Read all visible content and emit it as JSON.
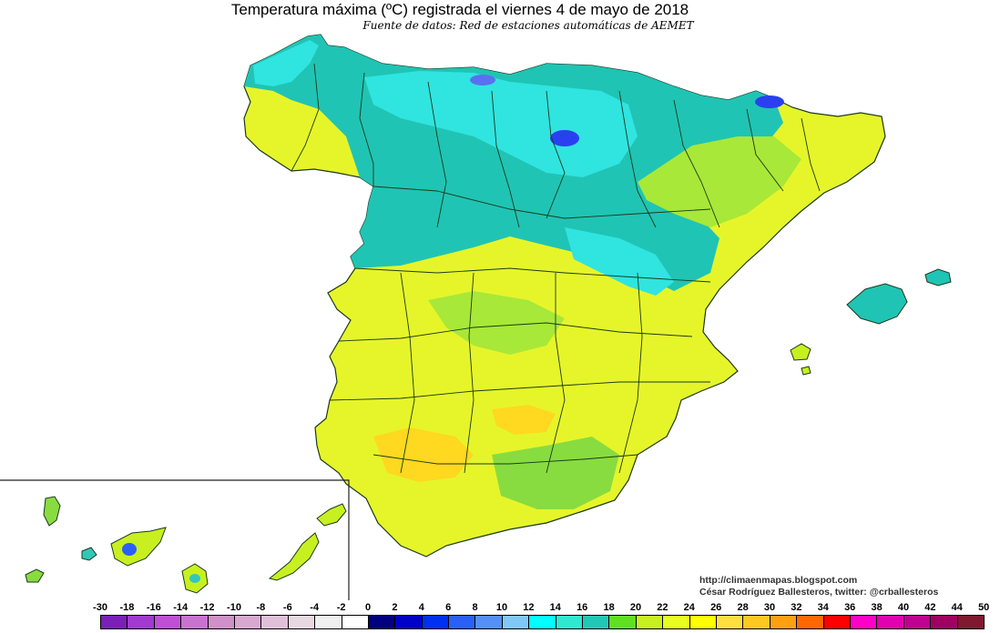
{
  "title": "Temperatura máxima (ºC) registrada el viernes 4 de mayo de 2018",
  "subtitle": "Fuente de datos: Red de estaciones automáticas de AEMET",
  "credits": {
    "blog": "http://climaenmapas.blogspot.com",
    "author": "César Rodríguez Ballesteros, twitter: @crballesteros"
  },
  "legend": {
    "labels": [
      "-30",
      "-18",
      "-16",
      "-14",
      "-12",
      "-10",
      "-8",
      "-6",
      "-4",
      "-2",
      "0",
      "2",
      "4",
      "6",
      "8",
      "10",
      "12",
      "14",
      "16",
      "18",
      "20",
      "22",
      "24",
      "26",
      "28",
      "30",
      "32",
      "34",
      "36",
      "38",
      "40",
      "42",
      "44",
      "50"
    ],
    "colors": [
      "#7a1fb8",
      "#a03ad0",
      "#c04fd8",
      "#c873d0",
      "#d090c8",
      "#d8a8d0",
      "#e0c0d8",
      "#e8d8e0",
      "#f0f0f0",
      "#ffffff",
      "#000080",
      "#0000c8",
      "#0030f0",
      "#2a60f8",
      "#5590f8",
      "#80c8f8",
      "#00ffff",
      "#30e8d0",
      "#20c8b8",
      "#60e020",
      "#c8f020",
      "#e8ff20",
      "#ffff00",
      "#ffe040",
      "#ffc820",
      "#ffa010",
      "#ff6800",
      "#ff0000",
      "#ff00c8",
      "#e000b0",
      "#c00090",
      "#a00060",
      "#801830"
    ]
  },
  "map_colors": {
    "sea": "#ffffff",
    "cool_north": "#20c8b8",
    "cyan": "#30e8e0",
    "mild": "#c8f020",
    "warm": "#ffff00",
    "hot": "#ffd820",
    "cold_mountain": "#2a40f0",
    "borders": "#1a3a1a"
  }
}
